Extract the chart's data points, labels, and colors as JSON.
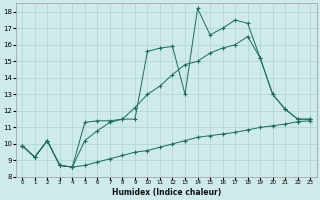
{
  "xlabel": "Humidex (Indice chaleur)",
  "xlim": [
    -0.5,
    23.5
  ],
  "ylim": [
    8.0,
    18.5
  ],
  "xticks": [
    0,
    1,
    2,
    3,
    4,
    5,
    6,
    7,
    8,
    9,
    10,
    11,
    12,
    13,
    14,
    15,
    16,
    17,
    18,
    19,
    20,
    21,
    22,
    23
  ],
  "yticks": [
    8,
    9,
    10,
    11,
    12,
    13,
    14,
    15,
    16,
    17,
    18
  ],
  "background_color": "#ceeaea",
  "grid_color": "#aed4d4",
  "line_color": "#1a6b5a",
  "line1_x": [
    0,
    1,
    2,
    3,
    4,
    5,
    6,
    7,
    8,
    9,
    10,
    11,
    12,
    13,
    14,
    15,
    16,
    17,
    18,
    19,
    20,
    21,
    22,
    23
  ],
  "line1_y": [
    9.9,
    9.2,
    10.2,
    8.7,
    8.6,
    11.3,
    11.4,
    11.4,
    11.5,
    11.5,
    15.6,
    15.8,
    15.9,
    13.0,
    18.2,
    16.6,
    17.0,
    17.5,
    17.3,
    15.2,
    13.0,
    12.1,
    11.5,
    11.5
  ],
  "line2_x": [
    0,
    1,
    2,
    3,
    4,
    5,
    6,
    7,
    8,
    9,
    10,
    11,
    12,
    13,
    14,
    15,
    16,
    17,
    18,
    19,
    20,
    21,
    22,
    23
  ],
  "line2_y": [
    9.9,
    9.2,
    10.2,
    8.7,
    8.6,
    10.2,
    10.8,
    11.3,
    11.5,
    12.2,
    13.0,
    13.5,
    14.2,
    14.8,
    15.0,
    15.5,
    15.8,
    16.0,
    16.5,
    15.2,
    13.0,
    12.1,
    11.5,
    11.5
  ],
  "line3_x": [
    0,
    1,
    2,
    3,
    4,
    5,
    6,
    7,
    8,
    9,
    10,
    11,
    12,
    13,
    14,
    15,
    16,
    17,
    18,
    19,
    20,
    21,
    22,
    23
  ],
  "line3_y": [
    9.9,
    9.2,
    10.2,
    8.7,
    8.6,
    8.7,
    8.9,
    9.1,
    9.3,
    9.5,
    9.6,
    9.8,
    10.0,
    10.2,
    10.4,
    10.5,
    10.6,
    10.7,
    10.85,
    11.0,
    11.1,
    11.2,
    11.35,
    11.4
  ]
}
